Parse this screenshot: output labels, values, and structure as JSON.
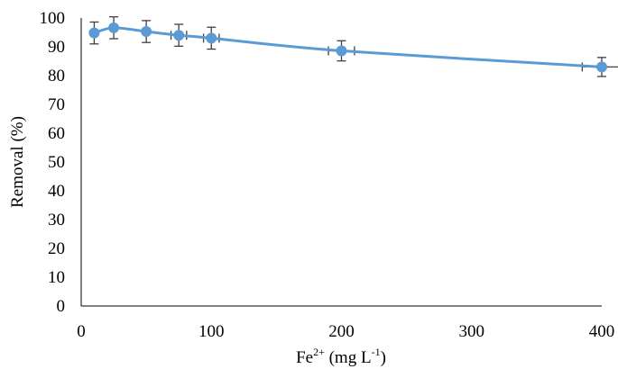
{
  "chart_data": {
    "type": "scatter",
    "title": "",
    "xlabel": {
      "base": "Fe",
      "sup": "2+",
      "rest": " (mg L",
      "sup2": "-1",
      "end": ")"
    },
    "ylabel": "Removal (%)",
    "xlim": [
      0,
      400
    ],
    "ylim": [
      0,
      100
    ],
    "xticks": [
      0,
      100,
      200,
      300,
      400
    ],
    "yticks": [
      0,
      10,
      20,
      30,
      40,
      50,
      60,
      70,
      80,
      90,
      100
    ],
    "grid": false,
    "legend": "none",
    "series": [
      {
        "color": "#5b9bd5",
        "marker": "circle",
        "line": "smooth",
        "x": [
          10,
          25,
          50,
          75,
          100,
          200,
          400
        ],
        "y": [
          94.8,
          96.6,
          95.3,
          94.0,
          93.0,
          88.6,
          83.0
        ],
        "yerr": [
          3.8,
          3.8,
          3.8,
          3.8,
          3.8,
          3.5,
          3.3
        ],
        "xerr": [
          0,
          0,
          0,
          6,
          6,
          10,
          15
        ]
      }
    ],
    "colors": {
      "axis": "#000000",
      "errorbar": "#404040"
    }
  }
}
